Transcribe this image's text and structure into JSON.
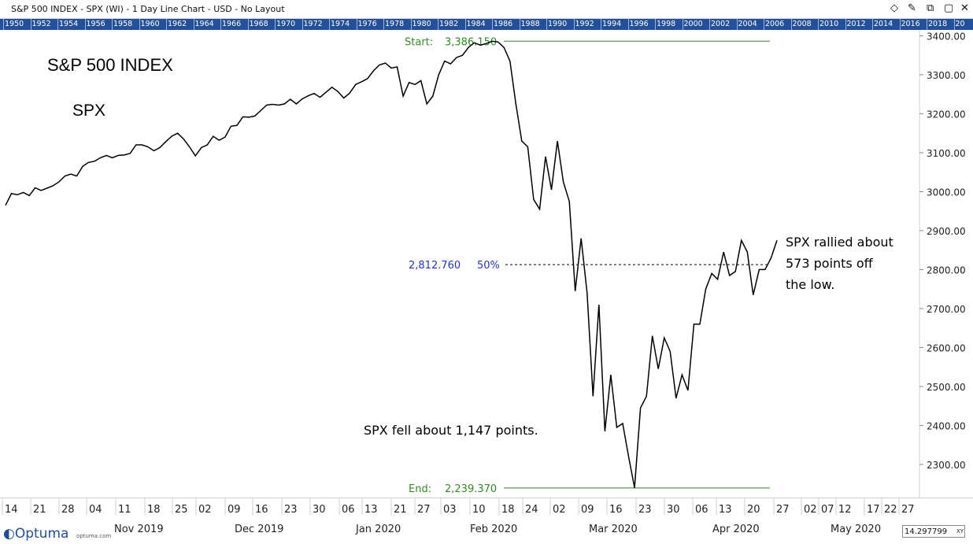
{
  "window": {
    "title": "S&P 500 INDEX - SPX (WI) - 1 Day Line Chart - USD - No Layout",
    "icons": [
      "diamond-icon",
      "pin-icon",
      "restore-icon",
      "close-icon"
    ]
  },
  "year_bar": [
    "1950",
    "1952",
    "1954",
    "1956",
    "1958",
    "1960",
    "1962",
    "1964",
    "1966",
    "1968",
    "1970",
    "1972",
    "1974",
    "1976",
    "1978",
    "1980",
    "1982",
    "1984",
    "1986",
    "1988",
    "1990",
    "1992",
    "1994",
    "1996",
    "1998",
    "2000",
    "2002",
    "2004",
    "2006",
    "2008",
    "2010",
    "2012",
    "2014",
    "2016",
    "2018",
    "20"
  ],
  "chart_data": {
    "type": "line",
    "title": "S&P 500 INDEX",
    "subtitle": "SPX",
    "y_tick_labels": [
      "3400.00",
      "3300.00",
      "3200.00",
      "3100.00",
      "3000.00",
      "2900.00",
      "2800.00",
      "2700.00",
      "2600.00",
      "2500.00",
      "2400.00",
      "2300.00"
    ],
    "y_ticks": [
      3400,
      3300,
      3200,
      3100,
      3000,
      2900,
      2800,
      2700,
      2600,
      2500,
      2400,
      2300
    ],
    "ylim": [
      2215,
      3415
    ],
    "x_day_labels": [
      "14",
      "21",
      "28",
      "04",
      "11",
      "18",
      "25",
      "02",
      "09",
      "16",
      "23",
      "30",
      "06",
      "13",
      "21",
      "27",
      "03",
      "10",
      "18",
      "24",
      "02",
      "09",
      "16",
      "23",
      "30",
      "06",
      "13",
      "20",
      "27",
      "02",
      "07",
      "12",
      "17",
      "22",
      "27"
    ],
    "month_labels": [
      "Nov 2019",
      "Dec 2019",
      "Jan 2020",
      "Feb 2020",
      "Mar 2020",
      "Apr 2020",
      "May 2020"
    ],
    "series": [
      {
        "values": [
          2965,
          2995,
          2992,
          2998,
          2990,
          3010,
          3003,
          3009,
          3015,
          3025,
          3040,
          3045,
          3040,
          3065,
          3075,
          3078,
          3087,
          3093,
          3087,
          3093,
          3094,
          3098,
          3120,
          3120,
          3115,
          3105,
          3113,
          3128,
          3142,
          3150,
          3135,
          3115,
          3092,
          3113,
          3120,
          3142,
          3132,
          3140,
          3168,
          3170,
          3192,
          3191,
          3194,
          3208,
          3222,
          3224,
          3222,
          3225,
          3237,
          3225,
          3238,
          3246,
          3252,
          3242,
          3255,
          3268,
          3257,
          3240,
          3253,
          3275,
          3282,
          3290,
          3310,
          3325,
          3330,
          3317,
          3320,
          3245,
          3280,
          3275,
          3285,
          3225,
          3245,
          3300,
          3335,
          3328,
          3344,
          3350,
          3370,
          3382,
          3376,
          3380,
          3386,
          3384,
          3370,
          3335,
          3225,
          3130,
          3115,
          2980,
          2955,
          3090,
          3005,
          3130,
          3025,
          2975,
          2745,
          2880,
          2740,
          2475,
          2710,
          2385,
          2530,
          2395,
          2405,
          2320,
          2240,
          2445,
          2475,
          2630,
          2545,
          2625,
          2590,
          2470,
          2530,
          2490,
          2660,
          2660,
          2750,
          2790,
          2775,
          2845,
          2785,
          2795,
          2875,
          2845,
          2735,
          2800,
          2800,
          2830,
          2875
        ]
      }
    ],
    "retracement": {
      "start_label": "Start:",
      "start_value_label": "3,386.150",
      "start_value": 3386.15,
      "end_label": "End:",
      "end_value_label": "2,239.370",
      "end_value": 2239.37,
      "mid_value_label": "2,812.760",
      "mid_pct_label": "50%",
      "mid_value": 2812.76
    },
    "annotations": {
      "fell": "SPX fell about 1,147 points.",
      "rallied_1": "SPX rallied about",
      "rallied_2": "573 points off",
      "rallied_3": "the low."
    },
    "colors": {
      "line": "#000000",
      "retracement": "#2e8b22",
      "mid": "#1f36c8",
      "year_bar": "#23509a"
    }
  },
  "footer": {
    "logo": "Optuma",
    "logo_url": "optuma.com",
    "xy_value": "14.297799",
    "xy_label": "XY"
  }
}
